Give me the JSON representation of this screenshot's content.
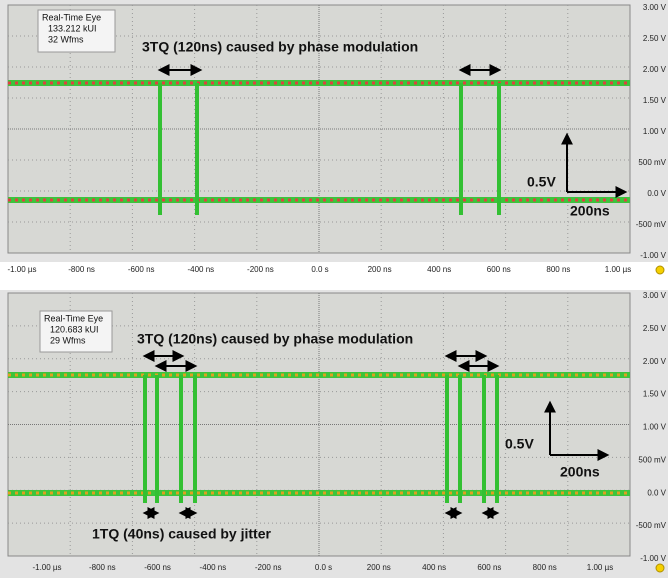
{
  "panels": [
    {
      "info": {
        "title": "Real-Time Eye",
        "ui": "133.212 kUI",
        "wfms": "32 Wfms"
      },
      "annotations": [
        "3TQ (120ns) caused by phase modulation"
      ],
      "scale": {
        "volt": "0.5V",
        "time": "200ns"
      },
      "xticks": [
        "-1.00 µs",
        "-800 ns",
        "-600 ns",
        "-400 ns",
        "-200 ns",
        "0.0 s",
        "200 ns",
        "400 ns",
        "600 ns",
        "800 ns",
        "1.00 µs"
      ],
      "yticks": [
        "3.00 V",
        "2.50 V",
        "2.00 V",
        "1.50 V",
        "1.00 V",
        "500 mV",
        "0.0 V",
        "-500 mV",
        "-1.00 V"
      ]
    },
    {
      "info": {
        "title": "Real-Time Eye",
        "ui": "120.683 kUI",
        "wfms": "29 Wfms"
      },
      "annotations": [
        "3TQ (120ns) caused by phase modulation",
        "1TQ (40ns) caused by jitter"
      ],
      "scale": {
        "volt": "0.5V",
        "time": "200ns"
      },
      "xticks": [
        "-1.00 µs",
        "-800 ns",
        "-600 ns",
        "-400 ns",
        "-200 ns",
        "0.0 s",
        "200 ns",
        "400 ns",
        "600 ns",
        "800 ns",
        "1.00 µs"
      ],
      "yticks": [
        "3.00 V",
        "2.50 V",
        "2.00 V",
        "1.50 V",
        "1.00 V",
        "500 mV",
        "0.0 V",
        "-500 mV",
        "-1.00 V"
      ]
    }
  ]
}
